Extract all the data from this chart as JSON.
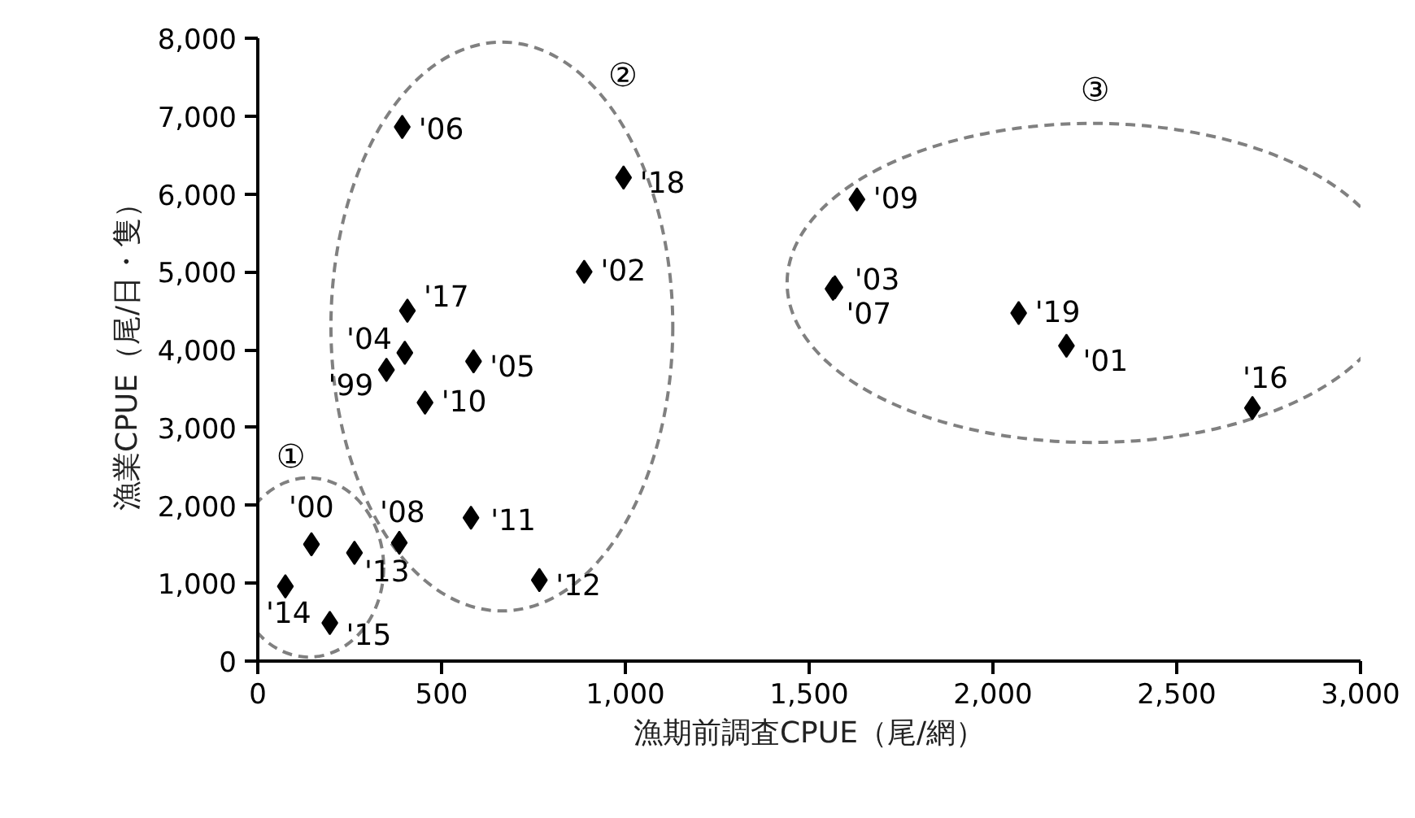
{
  "chart_data": {
    "type": "scatter",
    "xlabel": "漁期前調査CPUE（尾/網）",
    "ylabel": "漁業CPUE（尾/日・隻）",
    "series": [
      {
        "name": "'99",
        "color": "#000000",
        "x": [
          350
        ],
        "values": [
          3740
        ]
      },
      {
        "name": "'00",
        "color": "#000000",
        "x": [
          146
        ],
        "values": [
          1500
        ]
      },
      {
        "name": "'01",
        "color": "#000000",
        "x": [
          2200
        ],
        "values": [
          4050
        ]
      },
      {
        "name": "'02",
        "color": "#000000",
        "x": [
          888
        ],
        "values": [
          5000
        ]
      },
      {
        "name": "'03",
        "color": "#000000",
        "x": [
          1570
        ],
        "values": [
          4800
        ]
      },
      {
        "name": "'04",
        "color": "#000000",
        "x": [
          400
        ],
        "values": [
          3960
        ]
      },
      {
        "name": "'05",
        "color": "#000000",
        "x": [
          587
        ],
        "values": [
          3850
        ]
      },
      {
        "name": "'06",
        "color": "#000000",
        "x": [
          393
        ],
        "values": [
          6860
        ]
      },
      {
        "name": "'07",
        "color": "#000000",
        "x": [
          1565
        ],
        "values": [
          4780
        ]
      },
      {
        "name": "'08",
        "color": "#000000",
        "x": [
          385
        ],
        "values": [
          1520
        ]
      },
      {
        "name": "'09",
        "color": "#000000",
        "x": [
          1630
        ],
        "values": [
          5930
        ]
      },
      {
        "name": "'10",
        "color": "#000000",
        "x": [
          455
        ],
        "values": [
          3320
        ]
      },
      {
        "name": "'11",
        "color": "#000000",
        "x": [
          580
        ],
        "values": [
          1840
        ]
      },
      {
        "name": "'12",
        "color": "#000000",
        "x": [
          766
        ],
        "values": [
          1040
        ]
      },
      {
        "name": "'13",
        "color": "#000000",
        "x": [
          263
        ],
        "values": [
          1390
        ]
      },
      {
        "name": "'14",
        "color": "#000000",
        "x": [
          75
        ],
        "values": [
          960
        ]
      },
      {
        "name": "'15",
        "color": "#000000",
        "x": [
          196
        ],
        "values": [
          490
        ]
      },
      {
        "name": "'16",
        "color": "#000000",
        "x": [
          2706
        ],
        "values": [
          3250
        ]
      },
      {
        "name": "'17",
        "color": "#000000",
        "x": [
          407
        ],
        "values": [
          4500
        ]
      },
      {
        "name": "'18",
        "color": "#000000",
        "x": [
          995
        ],
        "values": [
          6210
        ]
      },
      {
        "name": "'19",
        "color": "#000000",
        "x": [
          2070
        ],
        "values": [
          4470
        ]
      }
    ],
    "xlim": [
      0,
      3000
    ],
    "ylim": [
      0,
      8000
    ],
    "xticks": [
      0,
      500,
      {
        "value": 1000,
        "label": "1,000"
      },
      {
        "value": 1500,
        "label": "1,500"
      },
      {
        "value": 2000,
        "label": "2,000"
      },
      {
        "value": 2500,
        "label": "2,500"
      },
      {
        "value": 3000,
        "label": "3,000"
      }
    ],
    "yticks": [
      0,
      {
        "value": 1000,
        "label": "1,000"
      },
      {
        "value": 2000,
        "label": "2,000"
      },
      {
        "value": 3000,
        "label": "3,000"
      },
      {
        "value": 4000,
        "label": "4,000"
      },
      {
        "value": 5000,
        "label": "5,000"
      },
      {
        "value": 6000,
        "label": "6,000"
      },
      {
        "value": 7000,
        "label": "7,000"
      },
      {
        "value": 8000,
        "label": "8,000"
      }
    ],
    "annotations": [
      "①",
      "②",
      "③"
    ],
    "marker": "diamond",
    "grid": false
  }
}
